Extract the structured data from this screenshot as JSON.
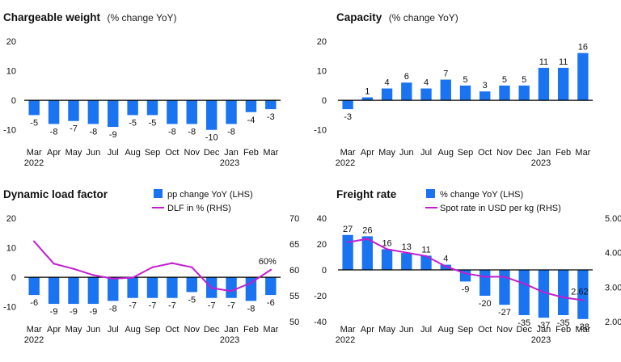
{
  "colors": {
    "bar": "#1a73f0",
    "line": "#c21ecf",
    "zero": "#000000",
    "text": "#111111"
  },
  "months": [
    "Mar",
    "Apr",
    "May",
    "Jun",
    "Jul",
    "Aug",
    "Sep",
    "Oct",
    "Nov",
    "Dec",
    "Jan",
    "Feb",
    "Mar"
  ],
  "year_labels": {
    "first": "2022",
    "second": "2023"
  },
  "chart_data": [
    {
      "id": "chargeable",
      "type": "bar",
      "title": "Chargeable weight",
      "subtitle": "(% change YoY)",
      "categories": [
        "Mar",
        "Apr",
        "May",
        "Jun",
        "Jul",
        "Aug",
        "Sep",
        "Oct",
        "Nov",
        "Dec",
        "Jan",
        "Feb",
        "Mar"
      ],
      "values": [
        -5,
        -8,
        -7,
        -8,
        -9,
        -5,
        -5,
        -8,
        -8,
        -10,
        -8,
        -4,
        -3
      ],
      "ylim": [
        -15,
        20
      ],
      "yticks": [
        20,
        10,
        0,
        -10
      ]
    },
    {
      "id": "capacity",
      "type": "bar",
      "title": "Capacity",
      "subtitle": "(% change YoY)",
      "categories": [
        "Mar",
        "Apr",
        "May",
        "Jun",
        "Jul",
        "Aug",
        "Sep",
        "Oct",
        "Nov",
        "Dec",
        "Jan",
        "Feb",
        "Mar"
      ],
      "values": [
        -3,
        1,
        4,
        6,
        4,
        7,
        5,
        3,
        5,
        5,
        11,
        11,
        16
      ],
      "ylim": [
        -15,
        20
      ],
      "yticks": [
        20,
        10,
        0,
        -10
      ]
    },
    {
      "id": "dlf",
      "type": "bar+line",
      "title": "Dynamic load factor",
      "legend": {
        "bar": "pp change YoY (LHS)",
        "line": "DLF in % (RHS)"
      },
      "categories": [
        "Mar",
        "Apr",
        "May",
        "Jun",
        "Jul",
        "Aug",
        "Sep",
        "Oct",
        "Nov",
        "Dec",
        "Jan",
        "Feb",
        "Mar"
      ],
      "values": [
        -6,
        -9,
        -9,
        -9,
        -8,
        -7,
        -7,
        -7,
        -5,
        -7,
        -7,
        -8,
        -6
      ],
      "line_values": [
        65.5,
        61.2,
        60.2,
        59,
        58.3,
        58.5,
        60.5,
        61.3,
        60.5,
        56.5,
        55.9,
        57.5,
        60
      ],
      "line_end_label": "60%",
      "ylim": [
        -15,
        20
      ],
      "yticks": [
        20,
        10,
        0,
        -10
      ],
      "y2lim": [
        50,
        70
      ],
      "y2ticks": [
        70,
        65,
        60,
        55,
        50
      ]
    },
    {
      "id": "freight",
      "type": "bar+line",
      "title": "Freight rate",
      "legend": {
        "bar": "% change YoY (LHS)",
        "line": "Spot rate in USD per kg (RHS)"
      },
      "categories": [
        "Mar",
        "Apr",
        "May",
        "Jun",
        "Jul",
        "Aug",
        "Sep",
        "Oct",
        "Nov",
        "Dec",
        "Jan",
        "Feb",
        "Mar"
      ],
      "values": [
        27,
        26,
        16,
        13,
        11,
        4,
        -9,
        -20,
        -27,
        -35,
        -37,
        -35,
        -38
      ],
      "line_values": [
        4.3,
        4.4,
        4.1,
        4.0,
        3.9,
        3.6,
        3.4,
        3.3,
        3.3,
        3.1,
        2.85,
        2.7,
        2.62
      ],
      "line_end_label": "2.62",
      "ylim": [
        -40,
        40
      ],
      "yticks": [
        40,
        20,
        0,
        -20,
        -40
      ],
      "y2lim": [
        2.0,
        5.0
      ],
      "y2ticks": [
        "5.00",
        "4.00",
        "3.00",
        "2.00"
      ],
      "y2tick_values": [
        5,
        4,
        3,
        2
      ]
    }
  ]
}
